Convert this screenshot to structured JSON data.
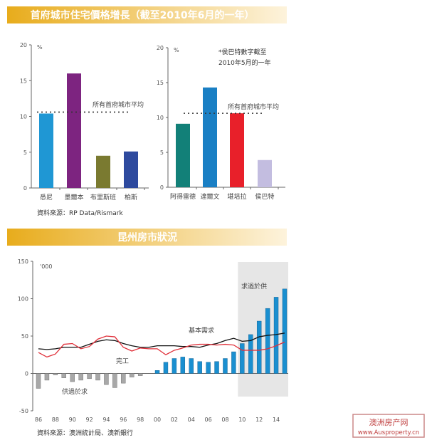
{
  "header1": "首府城市住宅價格增長（截至2010年6月的一年）",
  "header2": "昆州房市狀況",
  "colors": {
    "header_start": "#e8ac1c",
    "header_end": "#fdf3dc",
    "shade": "#e6e6e6"
  },
  "watermark": {
    "line1": "澳洲房产网",
    "line2": "www.Ausproperty.cn"
  },
  "chart_data": [
    {
      "type": "bar",
      "unit": "%",
      "ylim": [
        0,
        20
      ],
      "yticks": [
        0,
        5,
        10,
        15,
        20
      ],
      "categories": [
        "悉尼",
        "墨爾本",
        "布里斯班",
        "柏斯"
      ],
      "values": [
        10.4,
        16.0,
        4.5,
        5.1
      ],
      "colors": [
        "#1f97d4",
        "#7d2480",
        "#7a7a30",
        "#2e4a9e"
      ],
      "average": 10.6,
      "average_label": "所有首府城市平均",
      "source": "資料來源：RP Data/Rismark"
    },
    {
      "type": "bar",
      "unit": "%",
      "ylim": [
        0,
        20
      ],
      "yticks": [
        0,
        5,
        10,
        15,
        20
      ],
      "categories": [
        "阿得雷德",
        "達爾文",
        "堪培拉",
        "侯巴特"
      ],
      "values": [
        9.1,
        14.3,
        10.6,
        3.9
      ],
      "colors": [
        "#128078",
        "#1a7fc4",
        "#e8202a",
        "#c3bde0"
      ],
      "average": 10.6,
      "average_label": "所有首府城市平均",
      "annotation": [
        "*侯巴特數字截至",
        "2010年5月的一年"
      ]
    },
    {
      "type": "bar+line",
      "unit": "'000",
      "ylim": [
        -50,
        150
      ],
      "yticks": [
        -50,
        0,
        50,
        100,
        150
      ],
      "x": [
        1986,
        1987,
        1988,
        1989,
        1990,
        1991,
        1992,
        1993,
        1994,
        1995,
        1996,
        1997,
        1998,
        1999,
        2000,
        2001,
        2002,
        2003,
        2004,
        2005,
        2006,
        2007,
        2008,
        2009,
        2010,
        2011,
        2012,
        2013,
        2014,
        2015
      ],
      "xtick_labels": [
        "86",
        "88",
        "90",
        "92",
        "94",
        "96",
        "98",
        "00",
        "02",
        "04",
        "06",
        "08",
        "10",
        "12",
        "14"
      ],
      "bars": {
        "values": [
          -20,
          -9,
          -2,
          -6,
          -11,
          -9,
          -7,
          -9,
          -15,
          -19,
          -13,
          -5,
          -3,
          0,
          4,
          15,
          20,
          22,
          20,
          16,
          15,
          16,
          20,
          29,
          40,
          52,
          70,
          87,
          102,
          113
        ],
        "neg_color": "#a8a8a8",
        "pos_color": "#1a8fd0"
      },
      "series": [
        {
          "name": "基本需求",
          "color": "#111111",
          "values": [
            33,
            32,
            33,
            35,
            35,
            35,
            39,
            43,
            45,
            44,
            40,
            37,
            35,
            35,
            37,
            37,
            37,
            36,
            36,
            35,
            38,
            40,
            44,
            47,
            43,
            44,
            49,
            51,
            52,
            54
          ]
        },
        {
          "name": "完工",
          "color": "#e0303a",
          "values": [
            28,
            22,
            26,
            39,
            40,
            33,
            36,
            46,
            50,
            49,
            35,
            30,
            34,
            33,
            33,
            25,
            31,
            34,
            38,
            39,
            39,
            38,
            39,
            38,
            31,
            31,
            31,
            33,
            37,
            42
          ]
        }
      ],
      "shaded_from": 2010,
      "annotations": {
        "deficit": "供過於求",
        "surplus": "求過於供"
      },
      "source": "資料來源：澳洲統計局、澳新銀行"
    }
  ]
}
